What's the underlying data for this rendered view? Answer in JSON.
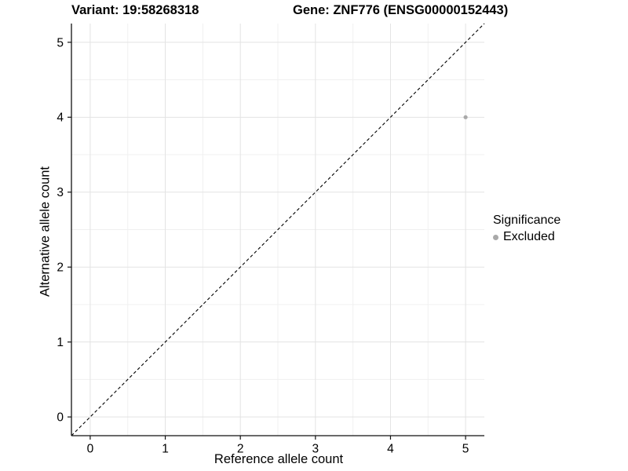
{
  "titles": {
    "variant": "Variant: 19:58268318",
    "gene": "Gene: ZNF776 (ENSG00000152443)"
  },
  "axes": {
    "x_label": "Reference allele count",
    "y_label": "Alternative allele count"
  },
  "legend": {
    "title": "Significance",
    "items": [
      {
        "label": "Excluded",
        "color": "#a9a9a9"
      }
    ]
  },
  "chart_data": {
    "type": "scatter",
    "title_left": "Variant: 19:58268318",
    "title_right": "Gene: ZNF776 (ENSG00000152443)",
    "xlabel": "Reference allele count",
    "ylabel": "Alternative allele count",
    "xlim": [
      -0.25,
      5.25
    ],
    "ylim": [
      -0.25,
      5.25
    ],
    "x_ticks": [
      0,
      1,
      2,
      3,
      4,
      5
    ],
    "y_ticks": [
      0,
      1,
      2,
      3,
      4,
      5
    ],
    "grid": {
      "major": true,
      "minor": true,
      "major_color": "#e3e3e3",
      "minor_color": "#f0f0f0"
    },
    "reference_line": {
      "type": "identity",
      "style": "dashed",
      "color": "#000000",
      "from": [
        -0.25,
        -0.25
      ],
      "to": [
        5.25,
        5.25
      ]
    },
    "series": [
      {
        "name": "Excluded",
        "color": "#a9a9a9",
        "points": [
          {
            "x": 5,
            "y": 4
          }
        ]
      }
    ],
    "legend_position": "right",
    "axis_color": "#111111",
    "text_color": "#000000"
  }
}
